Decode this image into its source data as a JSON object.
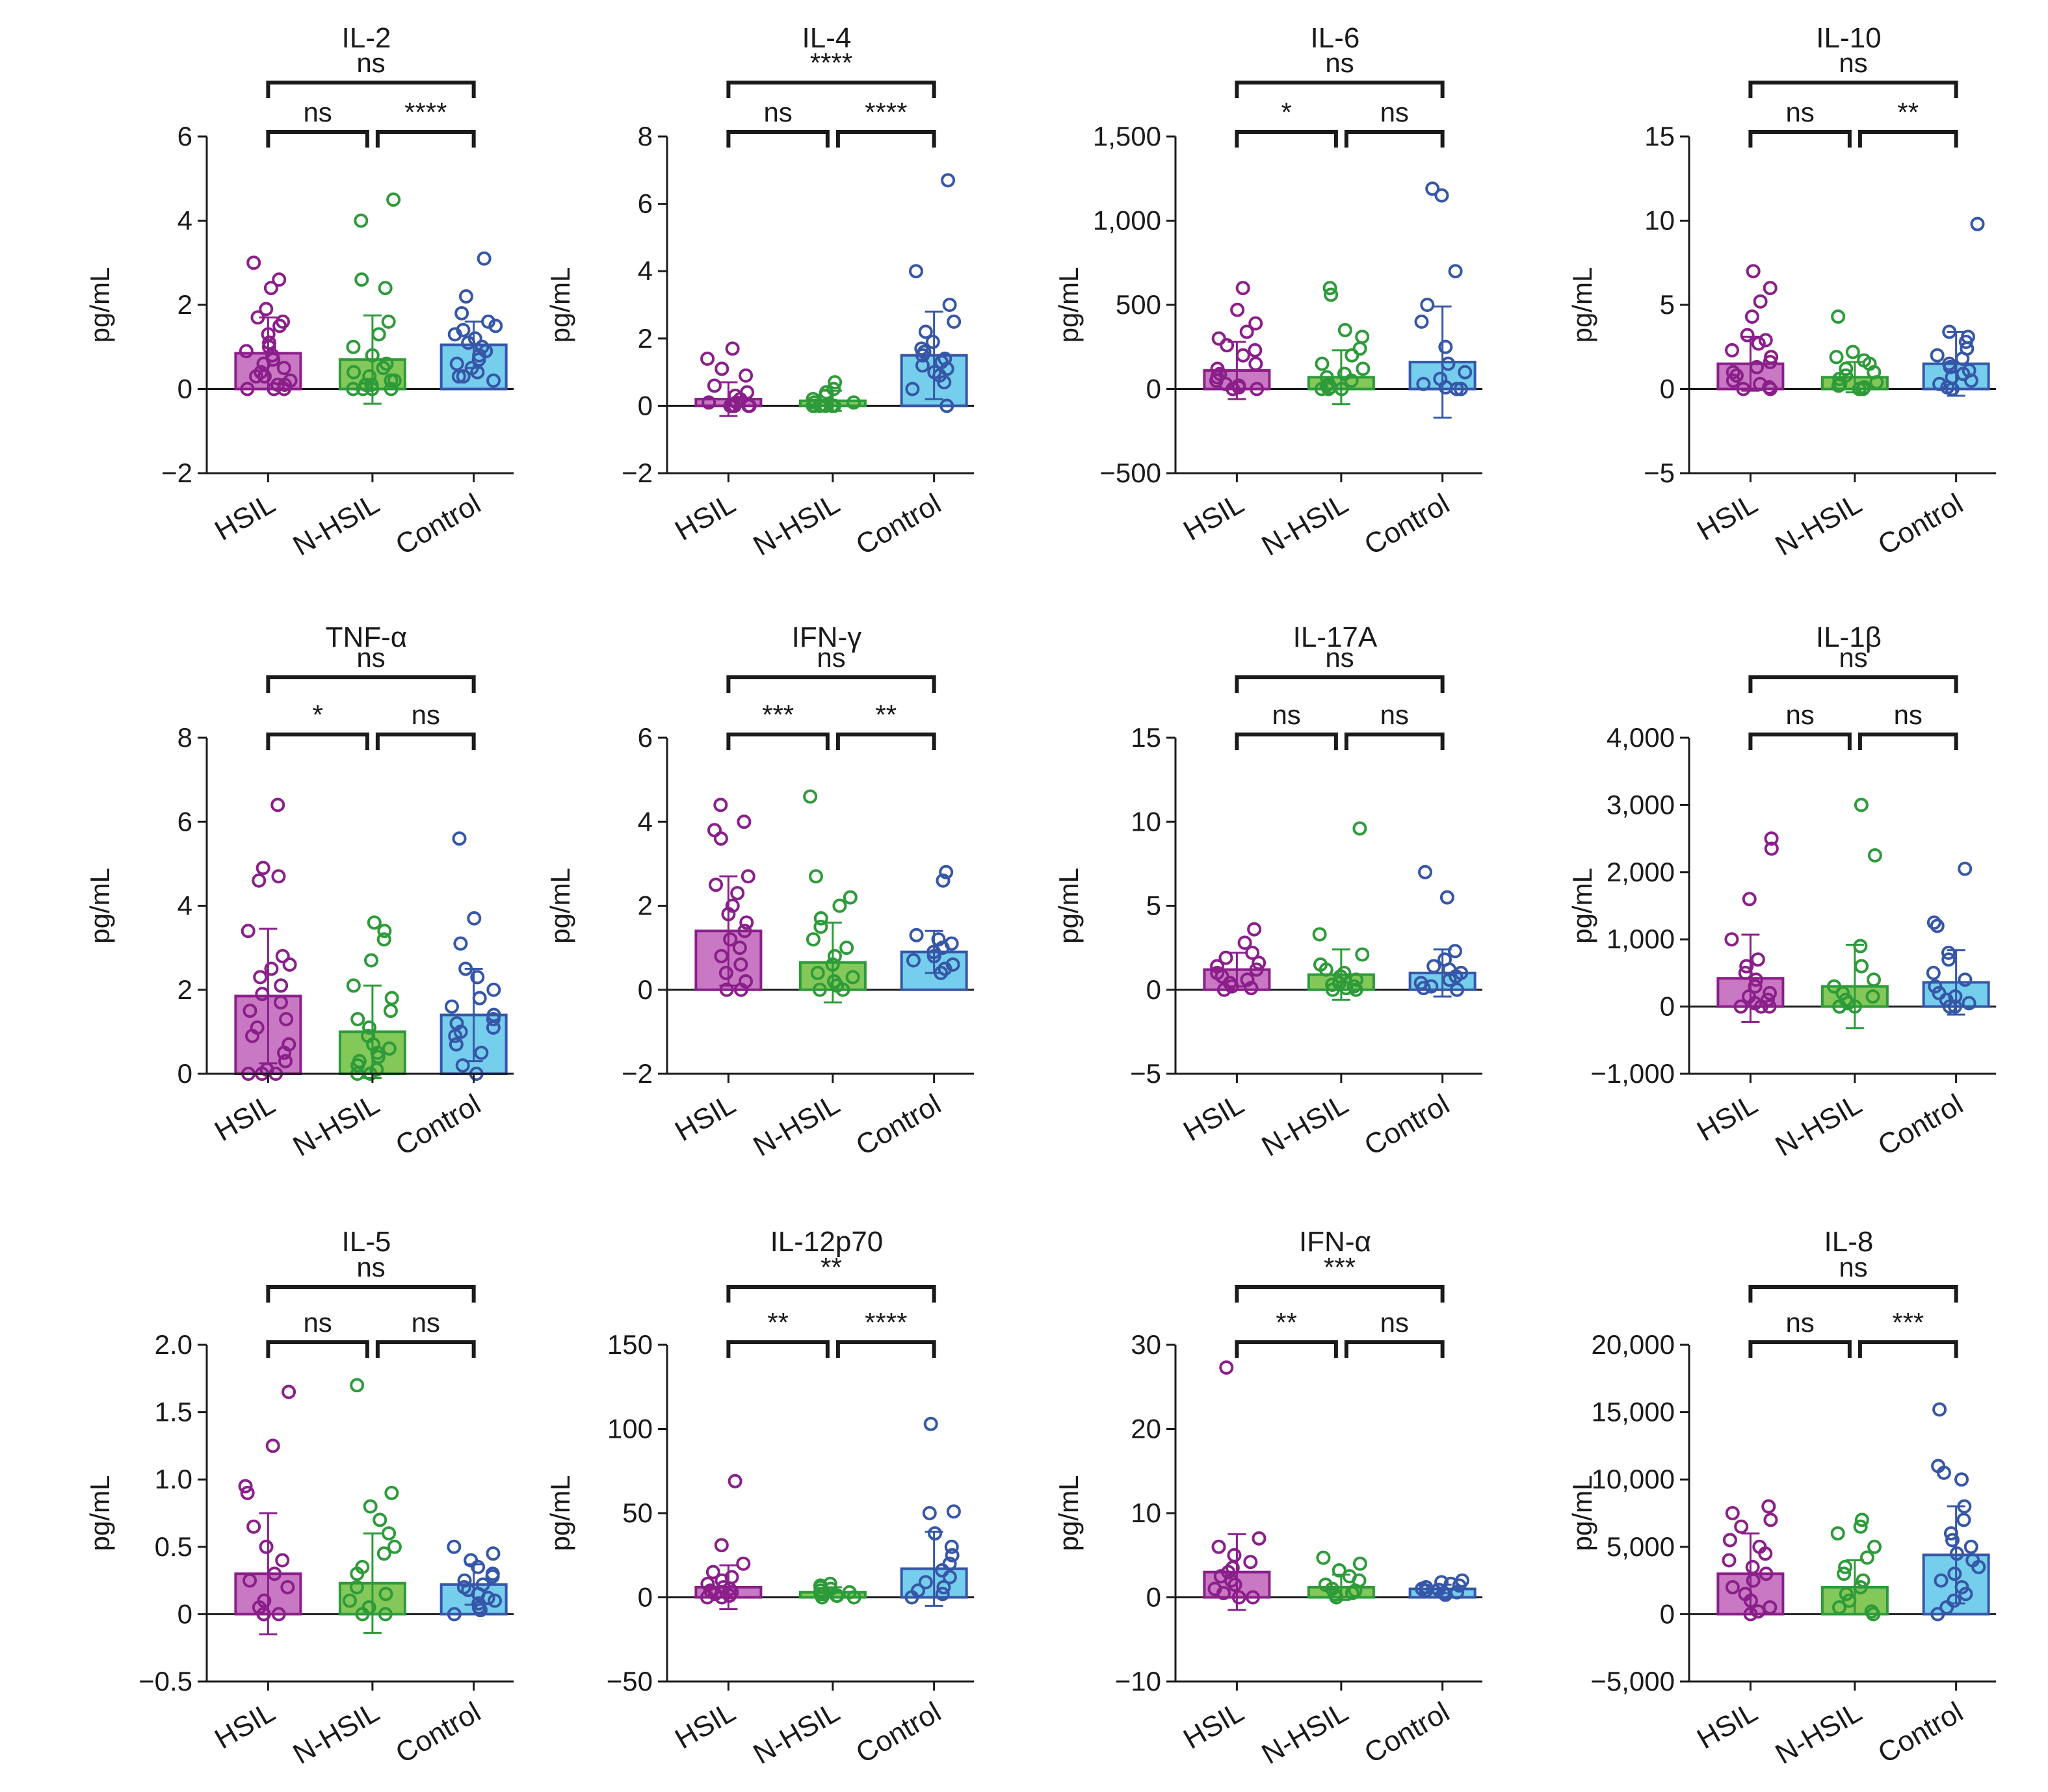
{
  "figure": {
    "group_colors": {
      "HSIL": {
        "fill": "#c060b8",
        "stroke": "#8a1f8a"
      },
      "N-HSIL": {
        "fill": "#6fbe3c",
        "stroke": "#2e9b3a"
      },
      "Control": {
        "fill": "#5dc5e8",
        "stroke": "#3657a8"
      }
    }
  },
  "chart_data": [
    {
      "type": "bar",
      "title": "IL-2",
      "ylabel": "pg/mL",
      "categories": [
        "HSIL",
        "N-HSIL",
        "Control"
      ],
      "ylim": [
        -2,
        6
      ],
      "yticks": [
        -2,
        0,
        2,
        4,
        6
      ],
      "ytick_labels": [
        "−2",
        "0",
        "2",
        "4",
        "6"
      ],
      "values": [
        0.85,
        0.7,
        1.05
      ],
      "sd": [
        0.85,
        1.05,
        0.55
      ],
      "points": [
        [
          3.0,
          2.6,
          2.4,
          1.9,
          1.7,
          1.6,
          1.5,
          1.3,
          1.1,
          1.0,
          0.9,
          0.8,
          0.7,
          0.6,
          0.5,
          0.4,
          0.3,
          0.3,
          0.2,
          0.1,
          0.1,
          0.0,
          0.0,
          0.0
        ],
        [
          4.5,
          4.0,
          2.6,
          2.4,
          1.6,
          1.3,
          1.0,
          0.8,
          0.6,
          0.5,
          0.4,
          0.3,
          0.2,
          0.2,
          0.1,
          0.1,
          0.0,
          0.0,
          0.0,
          0.0
        ],
        [
          3.1,
          2.2,
          1.8,
          1.6,
          1.5,
          1.4,
          1.3,
          1.2,
          1.1,
          1.0,
          0.9,
          0.8,
          0.7,
          0.6,
          0.5,
          0.4,
          0.3,
          0.3,
          0.2
        ]
      ],
      "comparisons": [
        {
          "pair": "HSIL-N-HSIL",
          "label": "ns"
        },
        {
          "pair": "N-HSIL-Control",
          "label": "****"
        },
        {
          "pair": "HSIL-Control",
          "label": "ns"
        }
      ]
    },
    {
      "type": "bar",
      "title": "IL-4",
      "ylabel": "pg/mL",
      "categories": [
        "HSIL",
        "N-HSIL",
        "Control"
      ],
      "ylim": [
        -2,
        8
      ],
      "yticks": [
        -2,
        0,
        2,
        4,
        6,
        8
      ],
      "ytick_labels": [
        "−2",
        "0",
        "2",
        "4",
        "6",
        "8"
      ],
      "values": [
        0.2,
        0.15,
        1.5
      ],
      "sd": [
        0.5,
        0.3,
        1.3
      ],
      "points": [
        [
          1.7,
          1.4,
          1.1,
          0.9,
          0.6,
          0.4,
          0.3,
          0.2,
          0.1,
          0.1,
          0.0,
          0.0,
          0.0,
          0.0,
          0.0,
          0.0
        ],
        [
          0.7,
          0.5,
          0.4,
          0.3,
          0.2,
          0.1,
          0.1,
          0.0,
          0.0,
          0.0,
          0.0,
          0.0,
          0.0
        ],
        [
          6.7,
          4.0,
          3.0,
          2.5,
          2.2,
          1.9,
          1.7,
          1.6,
          1.5,
          1.4,
          1.3,
          1.2,
          1.1,
          1.0,
          0.9,
          0.7,
          0.5,
          0.0
        ]
      ],
      "comparisons": [
        {
          "pair": "HSIL-N-HSIL",
          "label": "ns"
        },
        {
          "pair": "N-HSIL-Control",
          "label": "****"
        },
        {
          "pair": "HSIL-Control",
          "label": "****"
        }
      ]
    },
    {
      "type": "bar",
      "title": "IL-6",
      "ylabel": "pg/mL",
      "categories": [
        "HSIL",
        "N-HSIL",
        "Control"
      ],
      "ylim": [
        -500,
        1500
      ],
      "yticks": [
        -500,
        0,
        500,
        1000,
        1500
      ],
      "ytick_labels": [
        "−500",
        "0",
        "500",
        "1,000",
        "1,500"
      ],
      "values": [
        110,
        70,
        160
      ],
      "sd": [
        170,
        160,
        330
      ],
      "points": [
        [
          600,
          470,
          390,
          340,
          300,
          260,
          230,
          200,
          150,
          120,
          90,
          70,
          50,
          30,
          20,
          10,
          0,
          0,
          0
        ],
        [
          600,
          560,
          350,
          310,
          240,
          200,
          150,
          120,
          90,
          70,
          50,
          30,
          20,
          10,
          0,
          0,
          0
        ],
        [
          1190,
          1150,
          700,
          500,
          400,
          250,
          150,
          100,
          60,
          30,
          10,
          0,
          0
        ]
      ],
      "comparisons": [
        {
          "pair": "HSIL-N-HSIL",
          "label": "*"
        },
        {
          "pair": "N-HSIL-Control",
          "label": "ns"
        },
        {
          "pair": "HSIL-Control",
          "label": "ns"
        }
      ]
    },
    {
      "type": "bar",
      "title": "IL-10",
      "ylabel": "pg/mL",
      "categories": [
        "HSIL",
        "N-HSIL",
        "Control"
      ],
      "ylim": [
        -5,
        15
      ],
      "yticks": [
        -5,
        0,
        5,
        10,
        15
      ],
      "ytick_labels": [
        "−5",
        "0",
        "5",
        "10",
        "15"
      ],
      "values": [
        1.5,
        0.7,
        1.5
      ],
      "sd": [
        1.6,
        0.9,
        1.9
      ],
      "points": [
        [
          7.0,
          6.0,
          5.2,
          4.3,
          3.2,
          2.9,
          2.7,
          2.3,
          1.9,
          1.6,
          1.3,
          1.0,
          0.8,
          0.5,
          0.3,
          0.1,
          0.0,
          0.0
        ],
        [
          4.3,
          2.2,
          1.9,
          1.7,
          1.5,
          1.2,
          1.0,
          0.8,
          0.6,
          0.4,
          0.3,
          0.2,
          0.1,
          0.0,
          0.0
        ],
        [
          9.8,
          3.4,
          3.1,
          2.8,
          2.4,
          2.0,
          1.8,
          1.5,
          1.3,
          1.1,
          0.9,
          0.7,
          0.5,
          0.3,
          0.1,
          0.0
        ]
      ],
      "comparisons": [
        {
          "pair": "HSIL-N-HSIL",
          "label": "ns"
        },
        {
          "pair": "N-HSIL-Control",
          "label": "**"
        },
        {
          "pair": "HSIL-Control",
          "label": "ns"
        }
      ]
    },
    {
      "type": "bar",
      "title": "TNF-α",
      "ylabel": "pg/mL",
      "categories": [
        "HSIL",
        "N-HSIL",
        "Control"
      ],
      "ylim": [
        0,
        8
      ],
      "yticks": [
        0,
        2,
        4,
        6,
        8
      ],
      "ytick_labels": [
        "0",
        "2",
        "4",
        "6",
        "8"
      ],
      "values": [
        1.85,
        1.0,
        1.4
      ],
      "sd": [
        1.6,
        1.1,
        1.1
      ],
      "points": [
        [
          6.4,
          4.9,
          4.7,
          4.6,
          3.4,
          2.8,
          2.6,
          2.5,
          2.3,
          2.1,
          1.9,
          1.7,
          1.5,
          1.3,
          1.1,
          0.9,
          0.7,
          0.5,
          0.3,
          0.1,
          0.0,
          0.0,
          0.0
        ],
        [
          3.6,
          3.4,
          3.2,
          2.7,
          2.1,
          1.8,
          1.5,
          1.3,
          1.1,
          0.9,
          0.7,
          0.6,
          0.5,
          0.4,
          0.3,
          0.2,
          0.1,
          0.0,
          0.0
        ],
        [
          5.6,
          3.7,
          3.1,
          2.5,
          2.3,
          2.0,
          1.8,
          1.6,
          1.4,
          1.3,
          1.2,
          1.1,
          1.0,
          0.9,
          0.7,
          0.5,
          0.2,
          0.0
        ]
      ],
      "comparisons": [
        {
          "pair": "HSIL-N-HSIL",
          "label": "*"
        },
        {
          "pair": "N-HSIL-Control",
          "label": "ns"
        },
        {
          "pair": "HSIL-Control",
          "label": "ns"
        }
      ]
    },
    {
      "type": "bar",
      "title": "IFN-γ",
      "ylabel": "pg/mL",
      "categories": [
        "HSIL",
        "N-HSIL",
        "Control"
      ],
      "ylim": [
        -2,
        6
      ],
      "yticks": [
        -2,
        0,
        2,
        4,
        6
      ],
      "ytick_labels": [
        "−2",
        "0",
        "2",
        "4",
        "6"
      ],
      "values": [
        1.4,
        0.65,
        0.9
      ],
      "sd": [
        1.3,
        0.95,
        0.5
      ],
      "points": [
        [
          4.4,
          4.0,
          3.8,
          3.6,
          2.7,
          2.5,
          2.3,
          2.0,
          1.8,
          1.6,
          1.4,
          1.2,
          1.0,
          0.8,
          0.6,
          0.4,
          0.2,
          0.0,
          0.0
        ],
        [
          4.6,
          2.7,
          2.2,
          2.0,
          1.7,
          1.5,
          1.2,
          1.0,
          0.8,
          0.6,
          0.4,
          0.3,
          0.2,
          0.1,
          0.0,
          0.0
        ],
        [
          2.8,
          2.6,
          1.3,
          1.2,
          1.1,
          1.0,
          0.9,
          0.8,
          0.7,
          0.6,
          0.5,
          0.4
        ]
      ],
      "comparisons": [
        {
          "pair": "HSIL-N-HSIL",
          "label": "***"
        },
        {
          "pair": "N-HSIL-Control",
          "label": "**"
        },
        {
          "pair": "HSIL-Control",
          "label": "ns"
        }
      ]
    },
    {
      "type": "bar",
      "title": "IL-17A",
      "ylabel": "pg/mL",
      "categories": [
        "HSIL",
        "N-HSIL",
        "Control"
      ],
      "ylim": [
        -5,
        15
      ],
      "yticks": [
        -5,
        0,
        5,
        10,
        15
      ],
      "ytick_labels": [
        "−5",
        "0",
        "5",
        "10",
        "15"
      ],
      "values": [
        1.2,
        0.9,
        1.0
      ],
      "sd": [
        1.0,
        1.5,
        1.4
      ],
      "points": [
        [
          3.6,
          2.8,
          2.2,
          1.9,
          1.6,
          1.4,
          1.2,
          1.0,
          0.8,
          0.6,
          0.4,
          0.2,
          0.1,
          0.0
        ],
        [
          9.6,
          3.3,
          2.1,
          1.5,
          1.2,
          1.0,
          0.8,
          0.6,
          0.4,
          0.3,
          0.2,
          0.1,
          0.0,
          0.0
        ],
        [
          7.0,
          5.5,
          2.3,
          1.8,
          1.4,
          1.2,
          1.0,
          0.8,
          0.6,
          0.4,
          0.2,
          0.1,
          0.0
        ]
      ],
      "comparisons": [
        {
          "pair": "HSIL-N-HSIL",
          "label": "ns"
        },
        {
          "pair": "N-HSIL-Control",
          "label": "ns"
        },
        {
          "pair": "HSIL-Control",
          "label": "ns"
        }
      ]
    },
    {
      "type": "bar",
      "title": "IL-1β",
      "ylabel": "pg/mL",
      "categories": [
        "HSIL",
        "N-HSIL",
        "Control"
      ],
      "ylim": [
        -1000,
        4000
      ],
      "yticks": [
        -1000,
        0,
        1000,
        2000,
        3000,
        4000
      ],
      "ytick_labels": [
        "−1,000",
        "0",
        "1,000",
        "2,000",
        "3,000",
        "4,000"
      ],
      "values": [
        420,
        300,
        360
      ],
      "sd": [
        650,
        620,
        480
      ],
      "points": [
        [
          2500,
          2350,
          1600,
          1000,
          700,
          600,
          500,
          400,
          300,
          200,
          150,
          100,
          50,
          0,
          0,
          0
        ],
        [
          3000,
          2250,
          900,
          600,
          400,
          300,
          200,
          150,
          100,
          50,
          0,
          0,
          0
        ],
        [
          2050,
          1250,
          1200,
          800,
          700,
          500,
          400,
          300,
          200,
          150,
          100,
          50,
          0,
          0
        ]
      ],
      "comparisons": [
        {
          "pair": "HSIL-N-HSIL",
          "label": "ns"
        },
        {
          "pair": "N-HSIL-Control",
          "label": "ns"
        },
        {
          "pair": "HSIL-Control",
          "label": "ns"
        }
      ]
    },
    {
      "type": "bar",
      "title": "IL-5",
      "ylabel": "pg/mL",
      "categories": [
        "HSIL",
        "N-HSIL",
        "Control"
      ],
      "ylim": [
        -0.5,
        2.0
      ],
      "yticks": [
        -0.5,
        0,
        0.5,
        1.0,
        1.5,
        2.0
      ],
      "ytick_labels": [
        "−0.5",
        "0",
        "0.5",
        "1.0",
        "1.5",
        "2.0"
      ],
      "values": [
        0.3,
        0.23,
        0.22
      ],
      "sd": [
        0.45,
        0.37,
        0.15
      ],
      "points": [
        [
          1.65,
          1.25,
          0.95,
          0.9,
          0.65,
          0.5,
          0.4,
          0.3,
          0.25,
          0.2,
          0.1,
          0.05,
          0.0,
          0.0,
          0.0
        ],
        [
          1.7,
          0.9,
          0.8,
          0.7,
          0.6,
          0.5,
          0.45,
          0.35,
          0.3,
          0.2,
          0.15,
          0.1,
          0.05,
          0.0,
          0.0
        ],
        [
          0.5,
          0.45,
          0.4,
          0.35,
          0.3,
          0.28,
          0.25,
          0.22,
          0.2,
          0.18,
          0.15,
          0.12,
          0.1,
          0.08,
          0.05,
          0.03,
          0.0
        ]
      ],
      "comparisons": [
        {
          "pair": "HSIL-N-HSIL",
          "label": "ns"
        },
        {
          "pair": "N-HSIL-Control",
          "label": "ns"
        },
        {
          "pair": "HSIL-Control",
          "label": "ns"
        }
      ]
    },
    {
      "type": "bar",
      "title": "IL-12p70",
      "ylabel": "pg/mL",
      "categories": [
        "HSIL",
        "N-HSIL",
        "Control"
      ],
      "ylim": [
        -50,
        150
      ],
      "yticks": [
        -50,
        0,
        50,
        100,
        150
      ],
      "ytick_labels": [
        "−50",
        "0",
        "50",
        "100",
        "150"
      ],
      "values": [
        6,
        3,
        17
      ],
      "sd": [
        13,
        3,
        22
      ],
      "points": [
        [
          69,
          31,
          20,
          15,
          12,
          10,
          8,
          6,
          5,
          4,
          3,
          2,
          1,
          0,
          0
        ],
        [
          8,
          7,
          6,
          5,
          4,
          3,
          2,
          2,
          1,
          1,
          0,
          0
        ],
        [
          103,
          51,
          50,
          38,
          30,
          25,
          20,
          16,
          12,
          9,
          6,
          4,
          2,
          0
        ]
      ],
      "comparisons": [
        {
          "pair": "HSIL-N-HSIL",
          "label": "**"
        },
        {
          "pair": "N-HSIL-Control",
          "label": "****"
        },
        {
          "pair": "HSIL-Control",
          "label": "**"
        }
      ]
    },
    {
      "type": "bar",
      "title": "IFN-α",
      "ylabel": "pg/mL",
      "categories": [
        "HSIL",
        "N-HSIL",
        "Control"
      ],
      "ylim": [
        -10,
        30
      ],
      "yticks": [
        -10,
        0,
        10,
        20,
        30
      ],
      "ytick_labels": [
        "−10",
        "0",
        "10",
        "20",
        "30"
      ],
      "values": [
        3,
        1.2,
        1
      ],
      "sd": [
        4.5,
        1.5,
        0.5
      ],
      "points": [
        [
          27.3,
          7.0,
          6.0,
          5.0,
          4.2,
          3.5,
          3.0,
          2.5,
          2.0,
          1.5,
          1.0,
          0.5,
          0.0,
          0.0
        ],
        [
          4.7,
          4.0,
          3.2,
          2.5,
          2.0,
          1.5,
          1.0,
          0.8,
          0.5,
          0.3,
          0.0
        ],
        [
          2.0,
          1.8,
          1.6,
          1.4,
          1.2,
          1.0,
          0.9,
          0.8,
          0.6,
          0.5,
          0.3
        ]
      ],
      "comparisons": [
        {
          "pair": "HSIL-N-HSIL",
          "label": "**"
        },
        {
          "pair": "N-HSIL-Control",
          "label": "ns"
        },
        {
          "pair": "HSIL-Control",
          "label": "***"
        }
      ]
    },
    {
      "type": "bar",
      "title": "IL-8",
      "ylabel": "pg/mL",
      "categories": [
        "HSIL",
        "N-HSIL",
        "Control"
      ],
      "ylim": [
        -5000,
        20000
      ],
      "yticks": [
        -5000,
        0,
        5000,
        10000,
        15000,
        20000
      ],
      "ytick_labels": [
        "−5,000",
        "0",
        "5,000",
        "10,000",
        "15,000",
        "20,000"
      ],
      "values": [
        3000,
        2000,
        4400
      ],
      "sd": [
        3000,
        2000,
        3600
      ],
      "points": [
        [
          8000,
          7500,
          7000,
          6500,
          5500,
          5000,
          4500,
          4000,
          3500,
          3000,
          2500,
          2000,
          1500,
          1000,
          500,
          200,
          0
        ],
        [
          7000,
          6500,
          6000,
          5000,
          4200,
          3500,
          3000,
          2500,
          2000,
          1500,
          1000,
          500,
          200,
          0
        ],
        [
          15200,
          11000,
          10500,
          10000,
          8000,
          7000,
          6000,
          5500,
          5000,
          4500,
          4000,
          3500,
          3000,
          2500,
          2000,
          1500,
          1000,
          500,
          0
        ]
      ],
      "comparisons": [
        {
          "pair": "HSIL-N-HSIL",
          "label": "ns"
        },
        {
          "pair": "N-HSIL-Control",
          "label": "***"
        },
        {
          "pair": "HSIL-Control",
          "label": "ns"
        }
      ]
    }
  ]
}
